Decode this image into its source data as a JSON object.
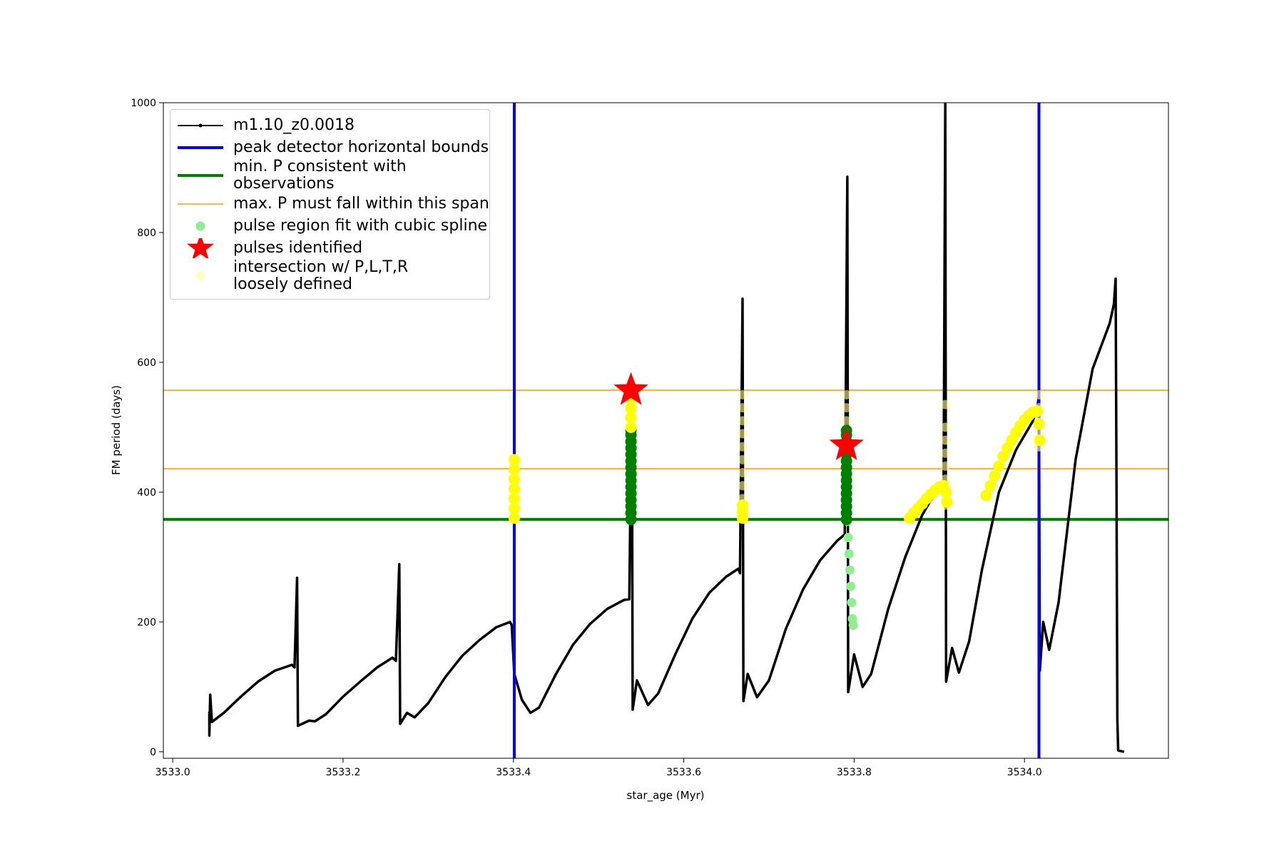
{
  "chart_data": {
    "type": "line",
    "x_label": "star_age (Myr)",
    "y_label": "FM period (days)",
    "xlim": [
      3532.989,
      3534.169
    ],
    "ylim": [
      -10,
      1000
    ],
    "xticks": [
      {
        "value": 3533.0,
        "label": "3533.0"
      },
      {
        "value": 3533.2,
        "label": "3533.2"
      },
      {
        "value": 3533.4,
        "label": "3533.4"
      },
      {
        "value": 3533.6,
        "label": "3533.6"
      },
      {
        "value": 3533.8,
        "label": "3533.8"
      },
      {
        "value": 3534.0,
        "label": "3534.0"
      }
    ],
    "yticks": [
      0,
      200,
      400,
      600,
      800,
      1000
    ],
    "grid": false,
    "legend": "upper left",
    "series": [
      {
        "name": "m1.10_z0.0018",
        "type": "line",
        "color": "#000000",
        "x": [
          3533.043,
          3533.043,
          3533.044,
          3533.046,
          3533.06,
          3533.08,
          3533.1,
          3533.12,
          3533.14,
          3533.143,
          3533.146,
          3533.147,
          3533.16,
          3533.167,
          3533.18,
          3533.2,
          3533.22,
          3533.24,
          3533.258,
          3533.262,
          3533.266,
          3533.267,
          3533.275,
          3533.284,
          3533.3,
          3533.32,
          3533.34,
          3533.36,
          3533.38,
          3533.396,
          3533.398,
          3533.401,
          3533.41,
          3533.42,
          3533.43,
          3533.45,
          3533.47,
          3533.49,
          3533.51,
          3533.53,
          3533.536,
          3533.539,
          3533.54,
          3533.545,
          3533.558,
          3533.57,
          3533.59,
          3533.61,
          3533.63,
          3533.65,
          3533.664,
          3533.666,
          3533.669,
          3533.67,
          3533.675,
          3533.686,
          3533.7,
          3533.72,
          3533.74,
          3533.76,
          3533.78,
          3533.789,
          3533.792,
          3533.793,
          3533.8,
          3533.81,
          3533.82,
          3533.84,
          3533.86,
          3533.88,
          3533.9,
          3533.905,
          3533.907,
          3533.908,
          3533.915,
          3533.923,
          3533.935,
          3533.95,
          3533.97,
          3533.99,
          3534.01,
          3534.015,
          3534.017,
          3534.018,
          3534.022,
          3534.029,
          3534.04,
          3534.06,
          3534.08,
          3534.1,
          3534.105,
          3534.107,
          3534.108,
          3534.109,
          3534.11,
          3534.117
        ],
        "values": [
          62,
          25,
          88,
          46,
          60,
          85,
          108,
          125,
          134,
          130,
          268,
          40,
          48,
          47,
          58,
          85,
          108,
          130,
          145,
          140,
          289,
          43,
          60,
          53,
          75,
          115,
          148,
          172,
          192,
          200,
          195,
          120,
          80,
          60,
          68,
          120,
          165,
          197,
          220,
          234,
          235,
          560,
          65,
          110,
          72,
          90,
          150,
          205,
          245,
          270,
          282,
          275,
          698,
          78,
          120,
          84,
          110,
          190,
          250,
          295,
          325,
          335,
          886,
          92,
          150,
          100,
          120,
          220,
          300,
          365,
          410,
          395,
          1000,
          108,
          160,
          122,
          170,
          280,
          400,
          465,
          510,
          530,
          550,
          125,
          200,
          157,
          230,
          450,
          590,
          660,
          690,
          729,
          420,
          50,
          2,
          0
        ]
      },
      {
        "name": "peak detector horizontal bounds",
        "type": "vline",
        "color": "#0000ff",
        "x": [
          3533.401,
          3534.017
        ]
      },
      {
        "name": "min. P consistent with observations",
        "type": "hline",
        "color": "#008000",
        "values": [
          358
        ]
      },
      {
        "name": "max. P must fall within this span",
        "type": "hline",
        "color": "#ffa500",
        "values": [
          557,
          436
        ]
      },
      {
        "name": "pulse region fit with cubic spline",
        "type": "scatter",
        "color": "#90ee90",
        "x": [
          3533.792,
          3533.793,
          3533.794,
          3533.795,
          3533.796,
          3533.797,
          3533.798,
          3533.799
        ],
        "values": [
          355,
          330,
          305,
          280,
          255,
          230,
          205,
          195
        ]
      },
      {
        "name": "pulses identified",
        "type": "star",
        "color": "#ff0000",
        "x": [
          3533.538,
          3533.791
        ],
        "values": [
          557,
          472
        ]
      },
      {
        "name": "intersection w/ P,L,T,R\nloosely defined",
        "type": "scatter",
        "color": "#ffff99",
        "alpha": 0.6,
        "x": [
          3533.401,
          3533.401,
          3533.401,
          3533.401,
          3533.401,
          3533.401,
          3533.401,
          3533.538,
          3533.538,
          3533.538,
          3533.538,
          3533.538,
          3533.538,
          3533.538,
          3533.538,
          3533.538,
          3533.538,
          3533.538,
          3533.669,
          3533.669,
          3533.669,
          3533.669,
          3533.669,
          3533.669,
          3533.669,
          3533.669,
          3533.669,
          3533.669,
          3533.791,
          3533.791,
          3533.791,
          3533.791,
          3533.791,
          3533.791,
          3533.791,
          3533.791,
          3533.791,
          3533.791,
          3533.907,
          3533.907,
          3533.907,
          3533.907,
          3533.907,
          3533.907,
          3533.907,
          3533.907,
          3534.017,
          3534.017,
          3534.017,
          3534.017,
          3534.017
        ],
        "values": [
          360,
          375,
          390,
          405,
          420,
          435,
          450,
          360,
          380,
          400,
          420,
          440,
          460,
          480,
          500,
          520,
          540,
          555,
          370,
          390,
          410,
          430,
          450,
          470,
          490,
          510,
          530,
          550,
          370,
          390,
          410,
          430,
          450,
          470,
          490,
          510,
          530,
          550,
          380,
          400,
          420,
          440,
          460,
          480,
          500,
          535,
          470,
          490,
          510,
          530,
          550
        ]
      },
      {
        "type": "scatter",
        "color": "#008000",
        "x": [
          3533.538,
          3533.538,
          3533.538,
          3533.538,
          3533.538,
          3533.538,
          3533.538,
          3533.538,
          3533.538,
          3533.538,
          3533.538,
          3533.538,
          3533.538,
          3533.538,
          3533.538,
          3533.791,
          3533.791,
          3533.791,
          3533.791,
          3533.791,
          3533.791,
          3533.791,
          3533.791,
          3533.791,
          3533.791,
          3533.791,
          3533.791,
          3533.791,
          3533.791,
          3533.791
        ],
        "values": [
          358,
          368,
          378,
          388,
          398,
          408,
          418,
          428,
          438,
          448,
          458,
          468,
          478,
          488,
          495,
          358,
          368,
          378,
          388,
          398,
          408,
          418,
          428,
          438,
          448,
          458,
          468,
          478,
          488,
          495
        ]
      },
      {
        "type": "scatter",
        "color": "#ffff00",
        "x": [
          3533.401,
          3533.401,
          3533.401,
          3533.401,
          3533.401,
          3533.401,
          3533.401,
          3533.538,
          3533.538,
          3533.538,
          3533.538,
          3533.538,
          3533.669,
          3533.669,
          3533.669,
          3533.865,
          3533.87,
          3533.875,
          3533.88,
          3533.885,
          3533.89,
          3533.895,
          3533.9,
          3533.905,
          3533.908,
          3533.909,
          3533.955,
          3533.96,
          3533.965,
          3533.97,
          3533.975,
          3533.98,
          3533.985,
          3533.99,
          3533.995,
          3534.0,
          3534.005,
          3534.01,
          3534.015,
          3534.017,
          3534.018
        ],
        "values": [
          360,
          375,
          390,
          405,
          420,
          435,
          450,
          500,
          515,
          530,
          545,
          555,
          360,
          370,
          380,
          360,
          368,
          375,
          382,
          390,
          397,
          403,
          408,
          410,
          400,
          385,
          395,
          410,
          425,
          440,
          455,
          468,
          480,
          492,
          502,
          511,
          518,
          523,
          525,
          505,
          480
        ]
      }
    ]
  }
}
